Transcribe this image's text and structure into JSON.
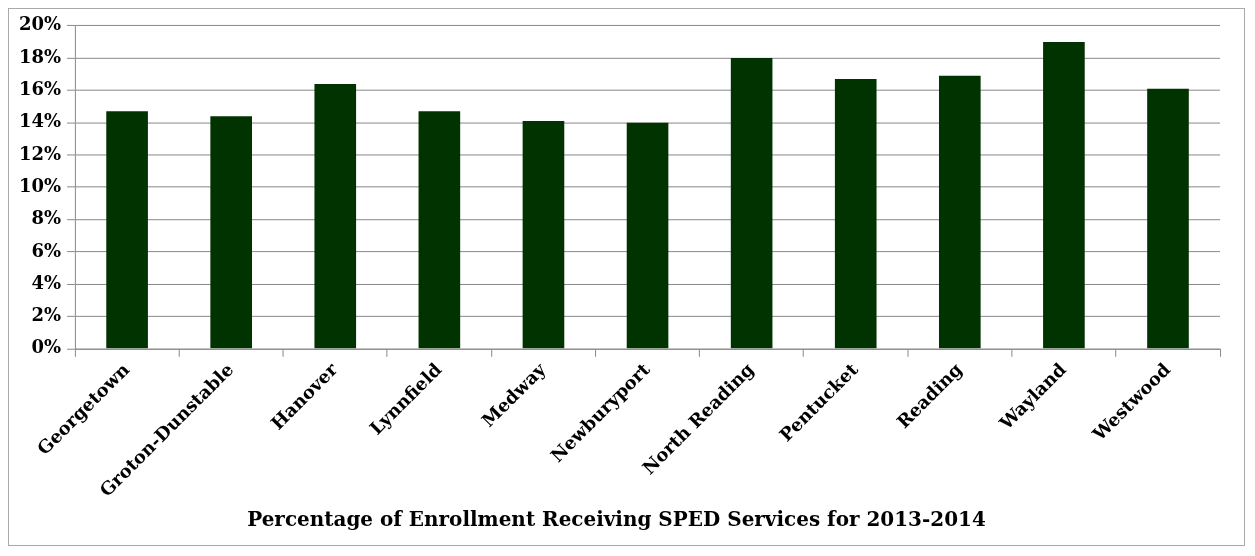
{
  "chart_data": {
    "type": "bar",
    "title": "Percentage of Enrollment Receiving SPED Services for 2013-2014",
    "categories": [
      "Georgetown",
      "Groton-Dunstable",
      "Hanover",
      "Lynnfield",
      "Medway",
      "Newburyport",
      "North Reading",
      "Pentucket",
      "Reading",
      "Wayland",
      "Westwood"
    ],
    "values": [
      14.7,
      14.4,
      16.4,
      14.7,
      14.1,
      14.0,
      18.0,
      16.7,
      16.9,
      19.0,
      16.1
    ],
    "color": "#003300",
    "ylim": [
      0,
      20
    ],
    "yticks": [
      {
        "value": 0,
        "label": "0%"
      },
      {
        "value": 2,
        "label": "2%"
      },
      {
        "value": 4,
        "label": "4%"
      },
      {
        "value": 6,
        "label": "6%"
      },
      {
        "value": 8,
        "label": "8%"
      },
      {
        "value": 10,
        "label": "10%"
      },
      {
        "value": 12,
        "label": "12%"
      },
      {
        "value": 14,
        "label": "14%"
      },
      {
        "value": 16,
        "label": "16%"
      },
      {
        "value": 18,
        "label": "18%"
      },
      {
        "value": 20,
        "label": "20%"
      }
    ],
    "grid": "y",
    "legend": false
  }
}
